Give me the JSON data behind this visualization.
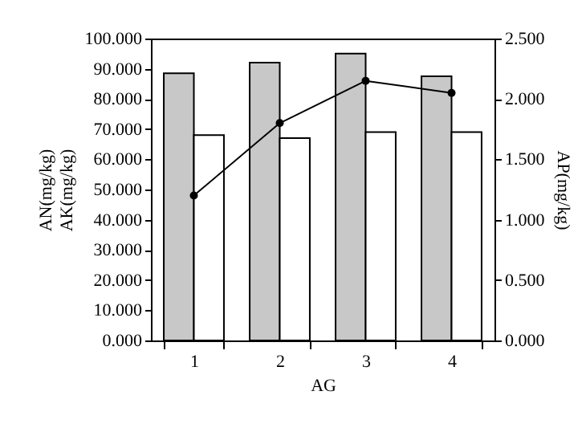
{
  "chart_data": {
    "type": "bar",
    "xlabel": "AG",
    "ylabel": "AN(mg/kg)\nAK(mg/kg)",
    "y2label": "AP(mg/kg)",
    "categories": [
      "1",
      "2",
      "3",
      "4"
    ],
    "series": [
      {
        "color": "#c8c8c8",
        "values": [
          88.5,
          92,
          95,
          87.5
        ]
      },
      {
        "color": "#ffffff",
        "values": [
          68,
          67,
          69,
          69
        ]
      },
      {
        "type": "line",
        "axis": "y2",
        "color": "#000000",
        "values": [
          1.2,
          1.8,
          2.15,
          2.05
        ]
      }
    ],
    "ylim": [
      0,
      100
    ],
    "yticks": [
      {
        "value": 0,
        "label": "0.000"
      },
      {
        "value": 10,
        "label": "10.000"
      },
      {
        "value": 20,
        "label": "20.000"
      },
      {
        "value": 30,
        "label": "30.000"
      },
      {
        "value": 40,
        "label": "40.000"
      },
      {
        "value": 50,
        "label": "50.000"
      },
      {
        "value": 60,
        "label": "60.000"
      },
      {
        "value": 70,
        "label": "70.000"
      },
      {
        "value": 80,
        "label": "80.000"
      },
      {
        "value": 90,
        "label": "90.000"
      },
      {
        "value": 100,
        "label": "100.000"
      }
    ],
    "y2lim": [
      0,
      2.5
    ],
    "y2ticks": [
      {
        "value": 0,
        "label": "0.000"
      },
      {
        "value": 0.5,
        "label": "0.500"
      },
      {
        "value": 1,
        "label": "1.000"
      },
      {
        "value": 1.5,
        "label": "1.500"
      },
      {
        "value": 2,
        "label": "2.000"
      },
      {
        "value": 2.5,
        "label": "2.500"
      }
    ],
    "grid": false,
    "marker": "circle"
  }
}
